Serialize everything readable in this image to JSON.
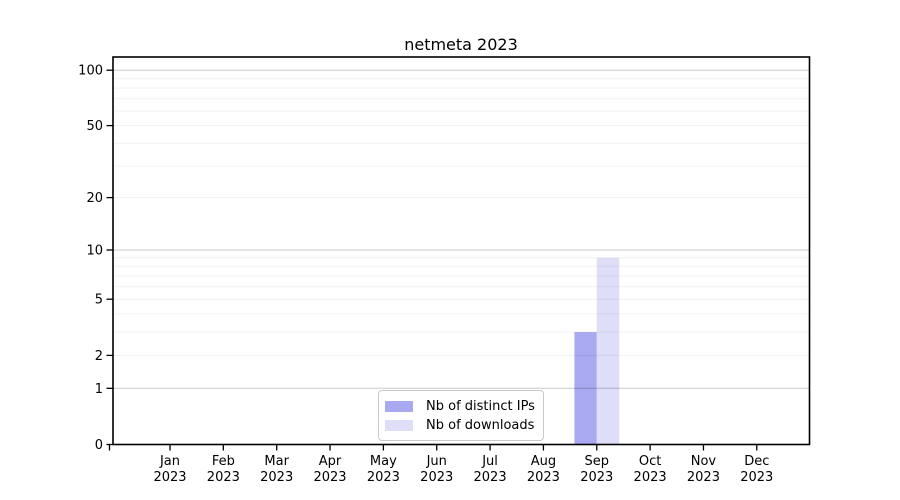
{
  "title": "netmeta 2023",
  "chart_data": {
    "type": "bar",
    "title": "netmeta 2023",
    "categories": [
      "Jan",
      "Feb",
      "Mar",
      "Apr",
      "May",
      "Jun",
      "Jul",
      "Aug",
      "Sep",
      "Oct",
      "Nov",
      "Dec"
    ],
    "category_sublabel": "2023",
    "series": [
      {
        "name": "Nb of distinct IPs",
        "color": "#a9a9f2",
        "values": [
          0,
          0,
          0,
          0,
          0,
          0,
          0,
          0,
          3,
          0,
          0,
          0
        ]
      },
      {
        "name": "Nb of downloads",
        "color": "#dedef8",
        "values": [
          0,
          0,
          0,
          0,
          0,
          0,
          0,
          0,
          9,
          0,
          0,
          0
        ]
      }
    ],
    "xlabel": "",
    "ylabel": "",
    "yscale": "log1p",
    "yticks": [
      0,
      1,
      2,
      5,
      10,
      20,
      50,
      100
    ],
    "major_gridlines": [
      1,
      10,
      100
    ],
    "minor_gridlines": [
      2,
      3,
      4,
      5,
      6,
      7,
      8,
      9,
      20,
      30,
      40,
      50,
      60,
      70,
      80,
      90
    ],
    "ylim": [
      0,
      118
    ],
    "grid": true,
    "legend_position": "bottom-center"
  },
  "colors": {
    "frame": "#000000",
    "tick_text": "#000000",
    "major_grid": "#c9c9c9",
    "minor_grid": "#f0f0f0",
    "background": "#ffffff"
  }
}
